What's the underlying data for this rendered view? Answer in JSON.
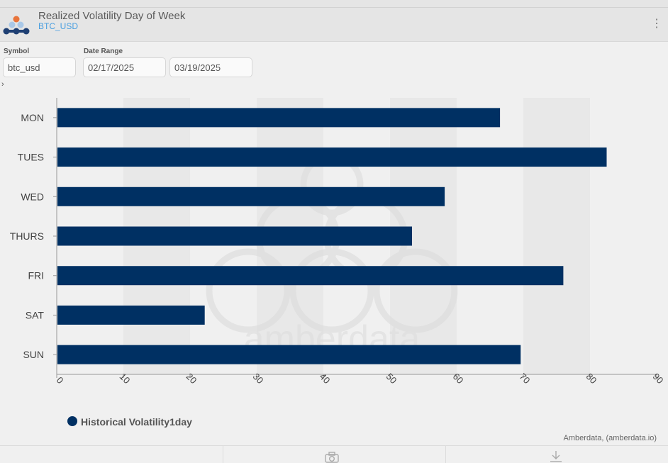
{
  "header": {
    "title": "Realized Volatility Day of Week",
    "subtitle": "BTC_USD",
    "menu_icon": "kebab-menu-icon",
    "logo_icon": "amberdata-logo-icon"
  },
  "controls": {
    "symbol_label": "Symbol",
    "symbol_value": "btc_usd",
    "date_range_label": "Date Range",
    "start_date": "02/17/2025",
    "end_date": "03/19/2025",
    "expand_icon": "chevron-right-icon"
  },
  "watermark": {
    "text": "amberdata"
  },
  "footer": {
    "credit": "Amberdata, (amberdata.io)",
    "camera_icon": "camera-icon",
    "download_icon": "download-icon"
  },
  "colors": {
    "bar": "#003063",
    "accent": "#4a9fe0",
    "logo_orange": "#e8743b"
  },
  "chart_data": {
    "type": "bar",
    "orientation": "horizontal",
    "categories": [
      "MON",
      "TUES",
      "WED",
      "THURS",
      "FRI",
      "SAT",
      "SUN"
    ],
    "series": [
      {
        "name": "Historical Volatility1day",
        "values": [
          66.5,
          82.5,
          58.2,
          53.3,
          76.0,
          22.2,
          69.6
        ]
      }
    ],
    "xlim": [
      0,
      90
    ],
    "x_ticks": [
      0,
      10,
      20,
      30,
      40,
      50,
      60,
      70,
      80,
      90
    ],
    "legend_position": "bottom-left",
    "grid": "alternating vertical bands"
  }
}
